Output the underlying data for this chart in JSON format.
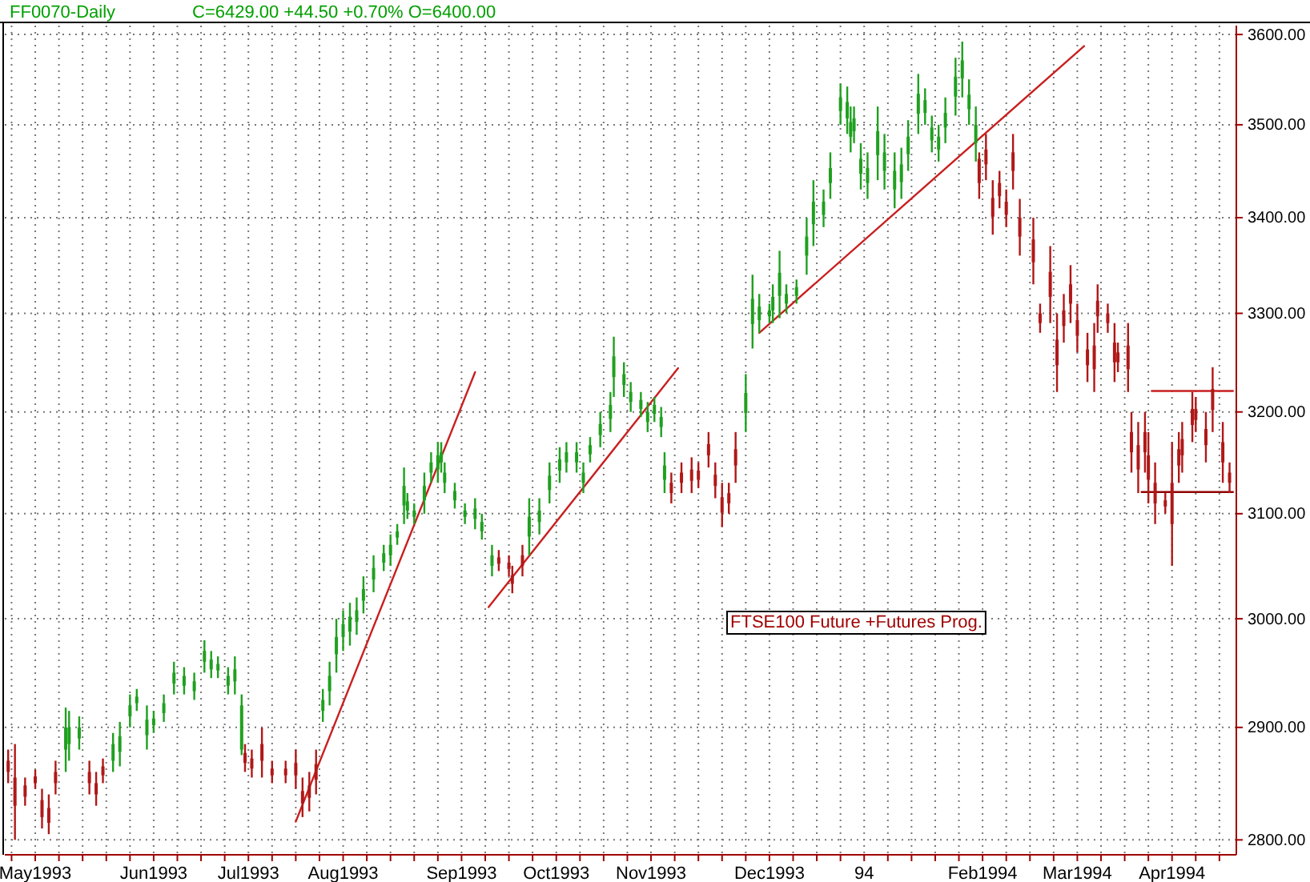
{
  "chart_data": {
    "type": "candlestick",
    "title": "FF0070-Daily",
    "subtitle": "C=6429.00 +44.50 +0.70% O=6400.00",
    "annotations": [
      "FTSE100 Future +Futures Prog."
    ],
    "x": [
      "1993-04-25",
      "1993-04-27",
      "1993-04-30",
      "1993-05-03",
      "1993-05-05",
      "1993-05-07",
      "1993-05-09",
      "1993-05-12",
      "1993-05-13",
      "1993-05-16",
      "1993-05-19",
      "1993-05-21",
      "1993-05-23",
      "1993-05-26",
      "1993-05-28",
      "1993-05-31",
      "1993-06-02",
      "1993-06-05",
      "1993-06-07",
      "1993-06-10",
      "1993-06-13",
      "1993-06-16",
      "1993-06-19",
      "1993-06-22",
      "1993-06-24",
      "1993-06-26",
      "1993-06-29",
      "1993-07-01",
      "1993-07-03",
      "1993-07-04",
      "1993-07-06",
      "1993-07-09",
      "1993-07-12",
      "1993-07-16",
      "1993-07-19",
      "1993-07-21",
      "1993-07-23",
      "1993-07-25",
      "1993-07-27",
      "1993-07-29",
      "1993-07-31",
      "1993-08-02",
      "1993-08-04",
      "1993-08-06",
      "1993-08-08",
      "1993-08-11",
      "1993-08-14",
      "1993-08-16",
      "1993-08-18",
      "1993-08-20",
      "1993-08-21",
      "1993-08-23",
      "1993-08-26",
      "1993-08-28",
      "1993-08-30",
      "1993-08-31",
      "1993-09-01",
      "1993-09-04",
      "1993-09-07",
      "1993-09-10",
      "1993-09-12",
      "1993-09-15",
      "1993-09-17",
      "1993-09-20",
      "1993-09-21",
      "1993-09-24",
      "1993-09-26",
      "1993-09-29",
      "1993-10-02",
      "1993-10-05",
      "1993-10-07",
      "1993-10-10",
      "1993-10-12",
      "1993-10-14",
      "1993-10-17",
      "1993-10-20",
      "1993-10-21",
      "1993-10-24",
      "1993-10-26",
      "1993-10-29",
      "1993-10-31",
      "1993-11-02",
      "1993-11-04",
      "1993-11-05",
      "1993-11-07",
      "1993-11-10",
      "1993-11-13",
      "1993-11-15",
      "1993-11-18",
      "1993-11-20",
      "1993-11-22",
      "1993-11-24",
      "1993-11-26",
      "1993-11-29",
      "1993-12-01",
      "1993-12-03",
      "1993-12-06",
      "1993-12-07",
      "1993-12-09",
      "1993-12-11",
      "1993-12-14",
      "1993-12-17",
      "1993-12-19",
      "1993-12-22",
      "1993-12-24",
      "1993-12-27",
      "1993-12-29",
      "1993-12-30",
      "1993-12-31",
      "1994-01-02",
      "1994-01-04",
      "1994-01-07",
      "1994-01-09",
      "1994-01-12",
      "1994-01-14",
      "1994-01-16",
      "1994-01-19",
      "1994-01-21",
      "1994-01-23",
      "1994-01-25",
      "1994-01-27",
      "1994-01-30",
      "1994-02-01",
      "1994-02-03",
      "1994-02-05",
      "1994-02-06",
      "1994-02-08",
      "1994-02-10",
      "1994-02-12",
      "1994-02-14",
      "1994-02-16",
      "1994-02-18",
      "1994-02-22",
      "1994-02-24",
      "1994-02-27",
      "1994-03-01",
      "1994-03-03",
      "1994-03-05",
      "1994-03-07",
      "1994-03-10",
      "1994-03-12",
      "1994-03-13",
      "1994-03-16",
      "1994-03-18",
      "1994-03-19",
      "1994-03-22",
      "1994-03-23",
      "1994-03-25",
      "1994-03-27",
      "1994-03-28",
      "1994-03-30",
      "1994-04-02",
      "1994-04-04",
      "1994-04-06",
      "1994-04-07",
      "1994-04-10",
      "1994-04-11",
      "1994-04-14",
      "1994-04-16",
      "1994-04-19",
      "1994-04-21"
    ],
    "ohlc": [
      [
        2870,
        2880,
        2850,
        2860
      ],
      [
        2855,
        2885,
        2800,
        2830
      ],
      [
        2848,
        2855,
        2830,
        2838
      ],
      [
        2856,
        2862,
        2845,
        2850
      ],
      [
        2835,
        2845,
        2810,
        2820
      ],
      [
        2828,
        2840,
        2805,
        2815
      ],
      [
        2860,
        2870,
        2840,
        2850
      ],
      [
        2880,
        2918,
        2860,
        2900
      ],
      [
        2885,
        2915,
        2870,
        2900
      ],
      [
        2890,
        2910,
        2880,
        2900
      ],
      [
        2860,
        2870,
        2840,
        2850
      ],
      [
        2850,
        2860,
        2830,
        2840
      ],
      [
        2865,
        2872,
        2850,
        2857
      ],
      [
        2870,
        2895,
        2860,
        2885
      ],
      [
        2878,
        2905,
        2865,
        2892
      ],
      [
        2910,
        2930,
        2900,
        2920
      ],
      [
        2922,
        2935,
        2915,
        2928
      ],
      [
        2893,
        2920,
        2880,
        2907
      ],
      [
        2902,
        2915,
        2895,
        2908
      ],
      [
        2913,
        2930,
        2905,
        2922
      ],
      [
        2940,
        2960,
        2930,
        2950
      ],
      [
        2938,
        2955,
        2930,
        2947
      ],
      [
        2933,
        2950,
        2925,
        2942
      ],
      [
        2960,
        2980,
        2950,
        2970
      ],
      [
        2953,
        2970,
        2945,
        2962
      ],
      [
        2952,
        2965,
        2945,
        2958
      ],
      [
        2938,
        2955,
        2930,
        2947
      ],
      [
        2942,
        2965,
        2930,
        2953
      ],
      [
        2880,
        2930,
        2875,
        2920
      ],
      [
        2877,
        2885,
        2860,
        2868
      ],
      [
        2872,
        2880,
        2855,
        2863
      ],
      [
        2885,
        2900,
        2855,
        2870
      ],
      [
        2863,
        2870,
        2850,
        2857
      ],
      [
        2863,
        2870,
        2850,
        2857
      ],
      [
        2868,
        2880,
        2845,
        2857
      ],
      [
        2843,
        2855,
        2820,
        2832
      ],
      [
        2848,
        2860,
        2825,
        2837
      ],
      [
        2867,
        2880,
        2840,
        2853
      ],
      [
        2915,
        2935,
        2905,
        2925
      ],
      [
        2933,
        2960,
        2920,
        2947
      ],
      [
        2967,
        3000,
        2950,
        2983
      ],
      [
        2983,
        3008,
        2970,
        2995
      ],
      [
        2988,
        3015,
        2975,
        3002
      ],
      [
        2997,
        3020,
        2985,
        3008
      ],
      [
        3017,
        3040,
        3005,
        3028
      ],
      [
        3037,
        3060,
        3025,
        3048
      ],
      [
        3053,
        3070,
        3045,
        3062
      ],
      [
        3060,
        3080,
        3050,
        3070
      ],
      [
        3077,
        3090,
        3070,
        3083
      ],
      [
        3108,
        3145,
        3090,
        3127
      ],
      [
        3103,
        3120,
        3095,
        3112
      ],
      [
        3097,
        3110,
        3090,
        3103
      ],
      [
        3113,
        3140,
        3100,
        3127
      ],
      [
        3140,
        3160,
        3130,
        3150
      ],
      [
        3143,
        3170,
        3130,
        3157
      ],
      [
        3150,
        3170,
        3140,
        3160
      ],
      [
        3130,
        3150,
        3120,
        3140
      ],
      [
        3113,
        3130,
        3105,
        3122
      ],
      [
        3097,
        3110,
        3090,
        3103
      ],
      [
        3095,
        3115,
        3085,
        3105
      ],
      [
        3083,
        3100,
        3075,
        3092
      ],
      [
        3050,
        3070,
        3040,
        3060
      ],
      [
        3058,
        3065,
        3045,
        3052
      ],
      [
        3053,
        3060,
        3040,
        3047
      ],
      [
        3041,
        3050,
        3024,
        3033
      ],
      [
        3060,
        3070,
        3040,
        3050
      ],
      [
        3078,
        3115,
        3060,
        3097
      ],
      [
        3092,
        3115,
        3080,
        3103
      ],
      [
        3123,
        3150,
        3110,
        3137
      ],
      [
        3142,
        3165,
        3130,
        3153
      ],
      [
        3150,
        3170,
        3140,
        3160
      ],
      [
        3150,
        3170,
        3140,
        3160
      ],
      [
        3130,
        3150,
        3120,
        3140
      ],
      [
        3158,
        3175,
        3150,
        3167
      ],
      [
        3177,
        3200,
        3165,
        3188
      ],
      [
        3193,
        3220,
        3180,
        3207
      ],
      [
        3235,
        3276,
        3215,
        3256
      ],
      [
        3227,
        3250,
        3215,
        3238
      ],
      [
        3210,
        3230,
        3200,
        3220
      ],
      [
        3203,
        3220,
        3195,
        3212
      ],
      [
        3190,
        3210,
        3180,
        3200
      ],
      [
        3198,
        3215,
        3190,
        3207
      ],
      [
        3185,
        3205,
        3175,
        3195
      ],
      [
        3133,
        3160,
        3120,
        3147
      ],
      [
        3130,
        3140,
        3110,
        3120
      ],
      [
        3140,
        3150,
        3120,
        3130
      ],
      [
        3143,
        3155,
        3120,
        3132
      ],
      [
        3142,
        3150,
        3125,
        3133
      ],
      [
        3168,
        3180,
        3145,
        3157
      ],
      [
        3138,
        3150,
        3115,
        3127
      ],
      [
        3116,
        3130,
        3087,
        3101
      ],
      [
        3120,
        3130,
        3100,
        3110
      ],
      [
        3163,
        3180,
        3130,
        3147
      ],
      [
        3199,
        3238,
        3180,
        3219
      ],
      [
        3289,
        3340,
        3264,
        3315
      ],
      [
        3293,
        3320,
        3280,
        3307
      ],
      [
        3297,
        3310,
        3290,
        3303
      ],
      [
        3303,
        3330,
        3290,
        3317
      ],
      [
        3318,
        3365,
        3295,
        3342
      ],
      [
        3310,
        3330,
        3300,
        3320
      ],
      [
        3318,
        3335,
        3310,
        3327
      ],
      [
        3360,
        3400,
        3340,
        3380
      ],
      [
        3393,
        3440,
        3370,
        3417
      ],
      [
        3403,
        3430,
        3390,
        3417
      ],
      [
        3437,
        3470,
        3420,
        3453
      ],
      [
        3515,
        3545,
        3500,
        3530
      ],
      [
        3507,
        3542,
        3490,
        3525
      ],
      [
        3487,
        3520,
        3470,
        3503
      ],
      [
        3493,
        3520,
        3480,
        3507
      ],
      [
        3447,
        3480,
        3430,
        3463
      ],
      [
        3437,
        3470,
        3420,
        3453
      ],
      [
        3467,
        3520,
        3440,
        3493
      ],
      [
        3450,
        3490,
        3430,
        3470
      ],
      [
        3430,
        3470,
        3410,
        3450
      ],
      [
        3438,
        3475,
        3420,
        3457
      ],
      [
        3468,
        3505,
        3450,
        3487
      ],
      [
        3512,
        3556,
        3490,
        3534
      ],
      [
        3513,
        3540,
        3500,
        3527
      ],
      [
        3483,
        3510,
        3470,
        3497
      ],
      [
        3473,
        3500,
        3460,
        3487
      ],
      [
        3497,
        3530,
        3480,
        3513
      ],
      [
        3531,
        3574,
        3510,
        3553
      ],
      [
        3551,
        3592,
        3530,
        3571
      ],
      [
        3517,
        3550,
        3500,
        3533
      ],
      [
        3480,
        3520,
        3460,
        3500
      ],
      [
        3463,
        3470,
        3420,
        3437
      ],
      [
        3473,
        3490,
        3440,
        3457
      ],
      [
        3421,
        3440,
        3382,
        3401
      ],
      [
        3437,
        3450,
        3410,
        3423
      ],
      [
        3417,
        3430,
        3390,
        3403
      ],
      [
        3470,
        3490,
        3430,
        3450
      ],
      [
        3400,
        3420,
        3360,
        3380
      ],
      [
        3377,
        3400,
        3330,
        3353
      ],
      [
        3300,
        3310,
        3280,
        3290
      ],
      [
        3343,
        3370,
        3290,
        3317
      ],
      [
        3273,
        3300,
        3220,
        3247
      ],
      [
        3303,
        3320,
        3270,
        3287
      ],
      [
        3330,
        3350,
        3290,
        3310
      ],
      [
        3293,
        3310,
        3260,
        3277
      ],
      [
        3263,
        3280,
        3230,
        3247
      ],
      [
        3267,
        3290,
        3220,
        3243
      ],
      [
        3313,
        3330,
        3280,
        3297
      ],
      [
        3300,
        3310,
        3280,
        3290
      ],
      [
        3270,
        3290,
        3230,
        3250
      ],
      [
        3260,
        3270,
        3240,
        3250
      ],
      [
        3267,
        3290,
        3220,
        3243
      ],
      [
        3180,
        3200,
        3140,
        3160
      ],
      [
        3167,
        3190,
        3120,
        3143
      ],
      [
        3180,
        3200,
        3140,
        3160
      ],
      [
        3157,
        3180,
        3110,
        3133
      ],
      [
        3130,
        3150,
        3090,
        3110
      ],
      [
        3113,
        3120,
        3100,
        3107
      ],
      [
        3130,
        3170,
        3050,
        3090
      ],
      [
        3163,
        3180,
        3130,
        3147
      ],
      [
        3173,
        3190,
        3140,
        3157
      ],
      [
        3203,
        3220,
        3170,
        3187
      ],
      [
        3203,
        3215,
        3180,
        3192
      ],
      [
        3183,
        3200,
        3150,
        3167
      ],
      [
        3223,
        3245,
        3180,
        3202
      ],
      [
        3170,
        3190,
        3130,
        3150
      ],
      [
        3140,
        3150,
        3120,
        3130
      ]
    ],
    "colors": [
      "#b01818",
      "#b01818",
      "#b01818",
      "#b01818",
      "#b01818",
      "#b01818",
      "#b01818",
      "#1fa01f",
      "#1fa01f",
      "#1fa01f",
      "#b01818",
      "#b01818",
      "#b01818",
      "#1fa01f",
      "#1fa01f",
      "#1fa01f",
      "#1fa01f",
      "#1fa01f",
      "#1fa01f",
      "#1fa01f",
      "#1fa01f",
      "#1fa01f",
      "#1fa01f",
      "#1fa01f",
      "#1fa01f",
      "#1fa01f",
      "#1fa01f",
      "#1fa01f",
      "#1fa01f",
      "#b01818",
      "#b01818",
      "#b01818",
      "#b01818",
      "#b01818",
      "#b01818",
      "#b01818",
      "#b01818",
      "#b01818",
      "#1fa01f",
      "#1fa01f",
      "#1fa01f",
      "#1fa01f",
      "#1fa01f",
      "#1fa01f",
      "#1fa01f",
      "#1fa01f",
      "#1fa01f",
      "#1fa01f",
      "#1fa01f",
      "#1fa01f",
      "#1fa01f",
      "#1fa01f",
      "#1fa01f",
      "#1fa01f",
      "#1fa01f",
      "#1fa01f",
      "#1fa01f",
      "#1fa01f",
      "#1fa01f",
      "#1fa01f",
      "#1fa01f",
      "#1fa01f",
      "#b01818",
      "#b01818",
      "#b01818",
      "#b01818",
      "#1fa01f",
      "#1fa01f",
      "#1fa01f",
      "#1fa01f",
      "#1fa01f",
      "#1fa01f",
      "#1fa01f",
      "#1fa01f",
      "#1fa01f",
      "#1fa01f",
      "#1fa01f",
      "#1fa01f",
      "#1fa01f",
      "#1fa01f",
      "#1fa01f",
      "#1fa01f",
      "#1fa01f",
      "#1fa01f",
      "#b01818",
      "#b01818",
      "#b01818",
      "#b01818",
      "#b01818",
      "#b01818",
      "#b01818",
      "#b01818",
      "#b01818",
      "#1fa01f",
      "#1fa01f",
      "#1fa01f",
      "#1fa01f",
      "#1fa01f",
      "#1fa01f",
      "#1fa01f",
      "#1fa01f",
      "#1fa01f",
      "#1fa01f",
      "#1fa01f",
      "#1fa01f",
      "#1fa01f",
      "#1fa01f",
      "#1fa01f",
      "#1fa01f",
      "#1fa01f",
      "#1fa01f",
      "#1fa01f",
      "#1fa01f",
      "#1fa01f",
      "#1fa01f",
      "#1fa01f",
      "#1fa01f",
      "#1fa01f",
      "#1fa01f",
      "#1fa01f",
      "#1fa01f",
      "#1fa01f",
      "#1fa01f",
      "#1fa01f",
      "#1fa01f",
      "#b01818",
      "#b01818",
      "#b01818",
      "#b01818",
      "#b01818",
      "#b01818",
      "#b01818",
      "#b01818",
      "#b01818",
      "#b01818",
      "#b01818",
      "#b01818",
      "#b01818",
      "#b01818",
      "#b01818",
      "#b01818",
      "#b01818",
      "#b01818",
      "#b01818",
      "#b01818",
      "#b01818",
      "#b01818",
      "#b01818",
      "#b01818",
      "#b01818",
      "#b01818",
      "#b01818",
      "#b01818",
      "#b01818",
      "#b01818",
      "#b01818",
      "#b01818",
      "#b01818",
      "#b01818",
      "#b01818",
      "#b01818"
    ],
    "series": [
      {
        "type": "line",
        "color": "#c82020",
        "x": [
          "1993-07-19",
          "1993-09-10"
        ],
        "values": [
          2816,
          3240
        ]
      },
      {
        "type": "line",
        "color": "#c82020",
        "x": [
          "1993-09-14",
          "1993-11-09"
        ],
        "values": [
          3011,
          3244
        ]
      },
      {
        "type": "line",
        "color": "#c82020",
        "x": [
          "1993-12-03",
          "1994-03-09"
        ],
        "values": [
          3280,
          3587
        ]
      },
      {
        "type": "line",
        "color": "#c82020",
        "x": [
          "1994-03-29",
          "1994-04-22"
        ],
        "values": [
          3221,
          3221
        ]
      },
      {
        "type": "line",
        "color": "#900000",
        "x": [
          "1994-03-26",
          "1994-04-22"
        ],
        "values": [
          3121,
          3121
        ]
      }
    ],
    "xlim": [
      "1993-04-24",
      "1994-04-23"
    ],
    "xticks": [
      {
        "value": "1993-04-26",
        "label": null
      },
      {
        "value": "1993-05-03",
        "label": "May1993"
      },
      {
        "value": "1993-05-10",
        "label": null
      },
      {
        "value": "1993-05-17",
        "label": null
      },
      {
        "value": "1993-05-24",
        "label": null
      },
      {
        "value": "1993-05-31",
        "label": null
      },
      {
        "value": "1993-06-07",
        "label": "Jun1993"
      },
      {
        "value": "1993-06-14",
        "label": null
      },
      {
        "value": "1993-06-21",
        "label": null
      },
      {
        "value": "1993-06-28",
        "label": null
      },
      {
        "value": "1993-07-05",
        "label": "Jul1993"
      },
      {
        "value": "1993-07-12",
        "label": null
      },
      {
        "value": "1993-07-19",
        "label": null
      },
      {
        "value": "1993-07-26",
        "label": null
      },
      {
        "value": "1993-08-02",
        "label": "Aug1993"
      },
      {
        "value": "1993-08-09",
        "label": null
      },
      {
        "value": "1993-08-16",
        "label": null
      },
      {
        "value": "1993-08-23",
        "label": null
      },
      {
        "value": "1993-08-30",
        "label": null
      },
      {
        "value": "1993-09-06",
        "label": "Sep1993"
      },
      {
        "value": "1993-09-13",
        "label": null
      },
      {
        "value": "1993-09-20",
        "label": null
      },
      {
        "value": "1993-09-27",
        "label": null
      },
      {
        "value": "1993-10-04",
        "label": "Oct1993"
      },
      {
        "value": "1993-10-11",
        "label": null
      },
      {
        "value": "1993-10-18",
        "label": null
      },
      {
        "value": "1993-10-25",
        "label": null
      },
      {
        "value": "1993-11-01",
        "label": "Nov1993"
      },
      {
        "value": "1993-11-08",
        "label": null
      },
      {
        "value": "1993-11-15",
        "label": null
      },
      {
        "value": "1993-11-22",
        "label": null
      },
      {
        "value": "1993-11-29",
        "label": null
      },
      {
        "value": "1993-12-06",
        "label": "Dec1993"
      },
      {
        "value": "1993-12-13",
        "label": null
      },
      {
        "value": "1993-12-20",
        "label": null
      },
      {
        "value": "1993-12-27",
        "label": null
      },
      {
        "value": "1994-01-03",
        "label": "94"
      },
      {
        "value": "1994-01-10",
        "label": null
      },
      {
        "value": "1994-01-17",
        "label": null
      },
      {
        "value": "1994-01-24",
        "label": null
      },
      {
        "value": "1994-01-31",
        "label": null
      },
      {
        "value": "1994-02-07",
        "label": "Feb1994"
      },
      {
        "value": "1994-02-14",
        "label": null
      },
      {
        "value": "1994-02-21",
        "label": null
      },
      {
        "value": "1994-02-28",
        "label": null
      },
      {
        "value": "1994-03-07",
        "label": "Mar1994"
      },
      {
        "value": "1994-03-14",
        "label": null
      },
      {
        "value": "1994-03-21",
        "label": null
      },
      {
        "value": "1994-03-28",
        "label": null
      },
      {
        "value": "1994-04-04",
        "label": "Apr1994"
      },
      {
        "value": "1994-04-11",
        "label": null
      },
      {
        "value": "1994-04-18",
        "label": null
      }
    ],
    "ylim": [
      2787,
      3610
    ],
    "yticks": [
      {
        "value": 2800,
        "label": "2800.00"
      },
      {
        "value": 2900,
        "label": "2900.00"
      },
      {
        "value": 3000,
        "label": "3000.00"
      },
      {
        "value": 3100,
        "label": "3100.00"
      },
      {
        "value": 3200,
        "label": "3200.00"
      },
      {
        "value": 3300,
        "label": "3300.00"
      },
      {
        "value": 3400,
        "label": "3400.00"
      },
      {
        "value": 3500,
        "label": "3500.00"
      },
      {
        "value": 3600,
        "label": "3600.00"
      }
    ],
    "log": true,
    "grid": true
  }
}
